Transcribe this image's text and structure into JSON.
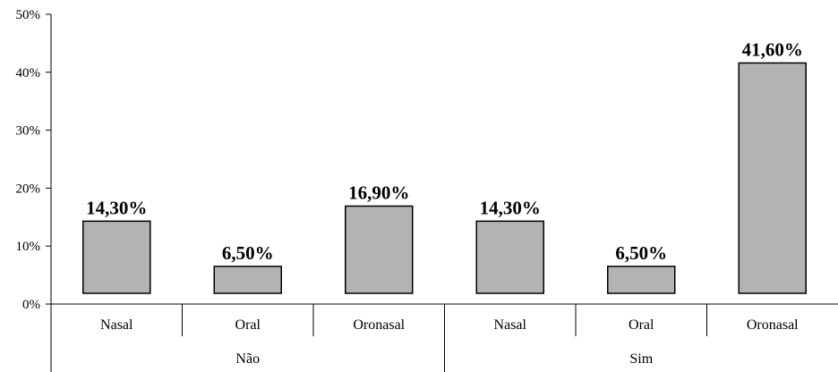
{
  "chart_data": {
    "type": "bar",
    "title": "",
    "xlabel": "",
    "ylabel": "",
    "ylim": [
      0,
      50
    ],
    "y_ticks": [
      "0%",
      "10%",
      "20%",
      "30%",
      "40%",
      "50%"
    ],
    "groups": [
      "Não",
      "Sim"
    ],
    "categories": [
      "Nasal",
      "Oral",
      "Oronasal"
    ],
    "series": [
      {
        "group": "Não",
        "values": [
          14.3,
          6.5,
          16.9
        ],
        "labels": [
          "14,30%",
          "6,50%",
          "16,90%"
        ]
      },
      {
        "group": "Sim",
        "values": [
          14.3,
          6.5,
          41.6
        ],
        "labels": [
          "14,30%",
          "6,50%",
          "41,60%"
        ]
      }
    ],
    "bars": [
      {
        "group": "Não",
        "category": "Nasal",
        "value": 14.3,
        "label": "14,30%"
      },
      {
        "group": "Não",
        "category": "Oral",
        "value": 6.5,
        "label": "6,50%"
      },
      {
        "group": "Não",
        "category": "Oronasal",
        "value": 16.9,
        "label": "16,90%"
      },
      {
        "group": "Sim",
        "category": "Nasal",
        "value": 14.3,
        "label": "14,30%"
      },
      {
        "group": "Sim",
        "category": "Oral",
        "value": 6.5,
        "label": "6,50%"
      },
      {
        "group": "Sim",
        "category": "Oronasal",
        "value": 41.6,
        "label": "41,60%"
      }
    ],
    "grid": false,
    "legend": "none",
    "colors": {
      "bar_fill": "#b3b3b3",
      "bar_stroke": "#000000"
    }
  }
}
